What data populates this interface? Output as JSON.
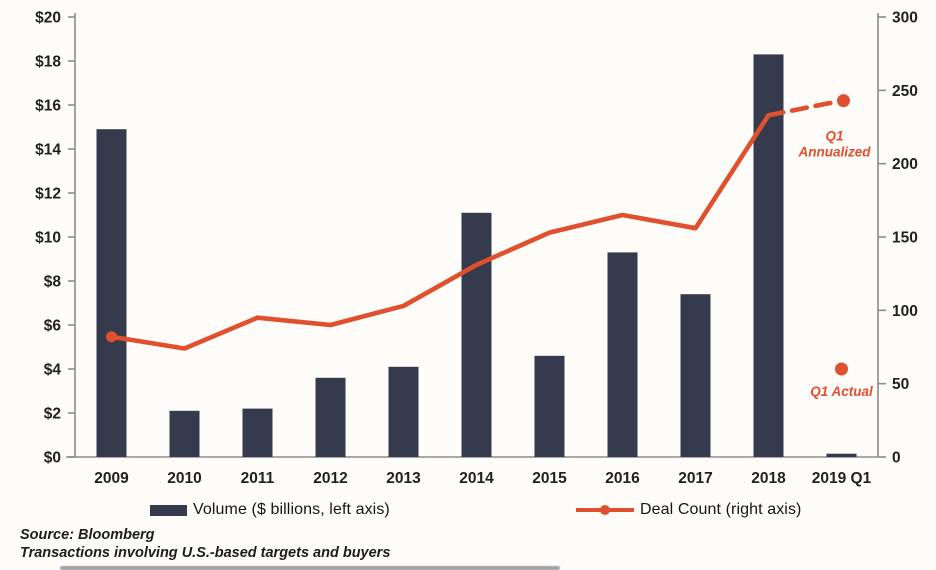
{
  "chart_data": {
    "type": "bar",
    "subtype": "bar-line-combo",
    "title": "",
    "categories": [
      "2009",
      "2010",
      "2011",
      "2012",
      "2013",
      "2014",
      "2015",
      "2016",
      "2017",
      "2018",
      "2019 Q1"
    ],
    "series": [
      {
        "name": "Volume ($ billions, left axis)",
        "type": "bar",
        "axis": "left",
        "color": "#363a4d",
        "values": [
          14.9,
          2.1,
          2.2,
          3.6,
          4.1,
          11.1,
          4.6,
          9.3,
          7.4,
          18.3,
          0.15
        ]
      },
      {
        "name": "Deal Count (right axis)",
        "type": "line",
        "axis": "right",
        "color": "#e1502e",
        "values": [
          82,
          74,
          95,
          90,
          103,
          131,
          153,
          165,
          156,
          233,
          null
        ]
      }
    ],
    "annotations": [
      {
        "label": "Q1 Annualized",
        "category": "2019 Q1",
        "axis": "right",
        "value": 243,
        "style": "dashed-projection-dot"
      },
      {
        "label": "Q1 Actual",
        "category": "2019 Q1",
        "axis": "right",
        "value": 60,
        "style": "dot"
      }
    ],
    "left_axis": {
      "min": 0,
      "max": 20,
      "tick_step": 2,
      "tick_labels": [
        "$0",
        "$2",
        "$4",
        "$6",
        "$8",
        "$10",
        "$12",
        "$14",
        "$16",
        "$18",
        "$20"
      ]
    },
    "right_axis": {
      "min": 0,
      "max": 300,
      "tick_step": 50,
      "tick_labels": [
        "0",
        "50",
        "100",
        "150",
        "200",
        "250",
        "300"
      ]
    },
    "grid": false,
    "legend_position": "bottom"
  },
  "colors": {
    "bar": "#363a4d",
    "line": "#e1502e",
    "annotation": "#e1502e",
    "axis": "#8c8c8c",
    "text": "#231f20",
    "background": "#fdfcf8"
  },
  "footer": {
    "source": "Source: Bloomberg",
    "note": "Transactions involving U.S.-based targets and buyers"
  }
}
